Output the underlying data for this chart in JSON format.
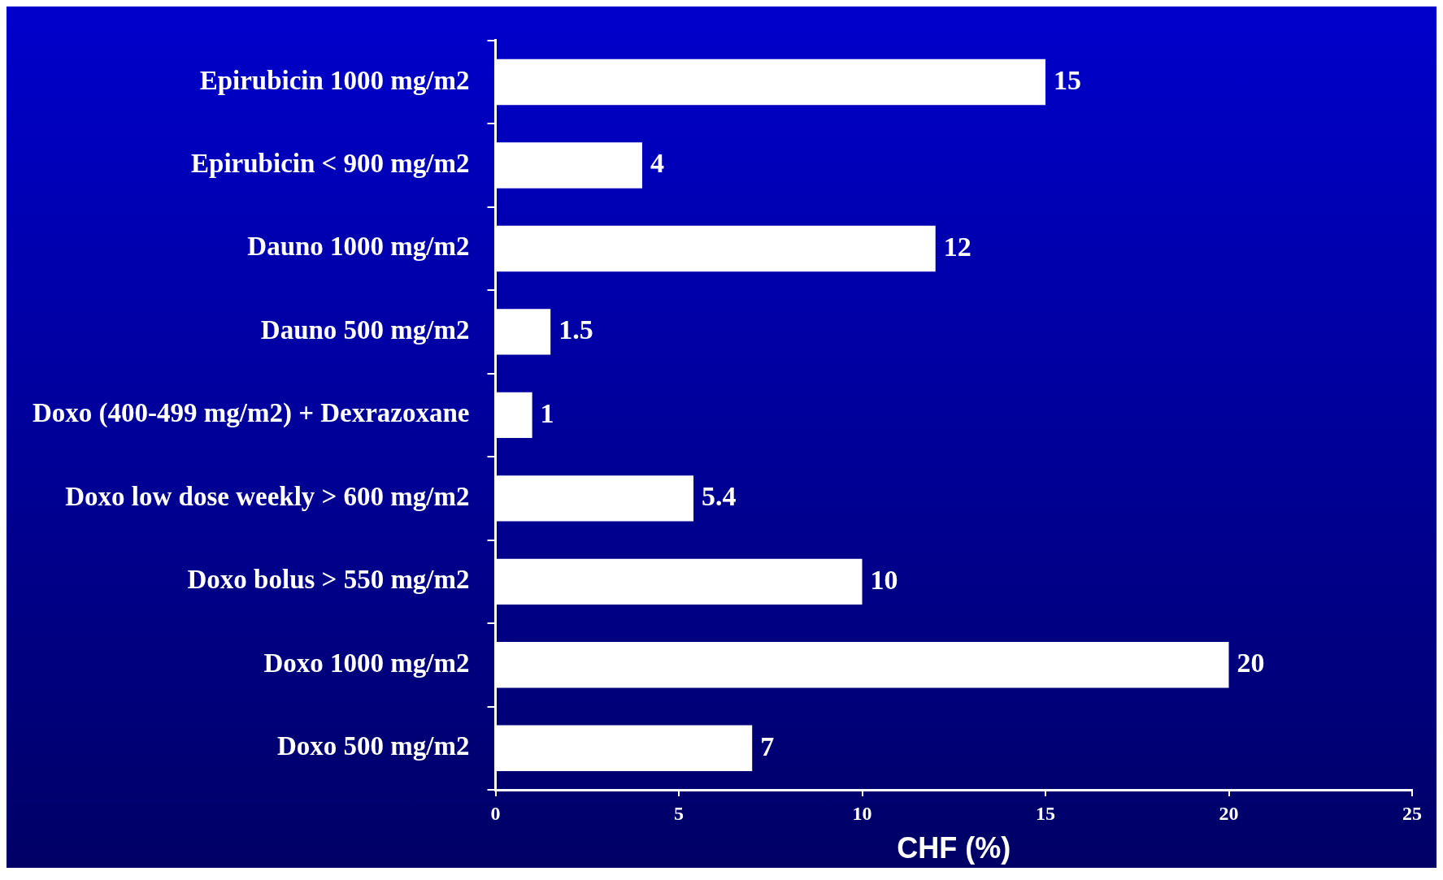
{
  "chart_data": {
    "type": "bar",
    "orientation": "horizontal",
    "xlabel": "CHF (%)",
    "categories": [
      "Epirubicin 1000 mg/m2",
      "Epirubicin < 900 mg/m2",
      "Dauno 1000 mg/m2",
      "Dauno 500 mg/m2",
      "Doxo (400-499 mg/m2) + Dexrazoxane",
      "Doxo low dose weekly > 600 mg/m2",
      "Doxo bolus > 550 mg/m2",
      "Doxo 1000 mg/m2",
      "Doxo 500 mg/m2"
    ],
    "values": [
      15,
      4,
      12,
      1.5,
      1,
      5.4,
      10,
      20,
      7
    ],
    "color": "#ffffff",
    "xlim": [
      0,
      25
    ],
    "xticks": [
      0,
      5,
      10,
      15,
      20,
      25
    ],
    "grid": false,
    "legend": false,
    "data_labels": true
  }
}
